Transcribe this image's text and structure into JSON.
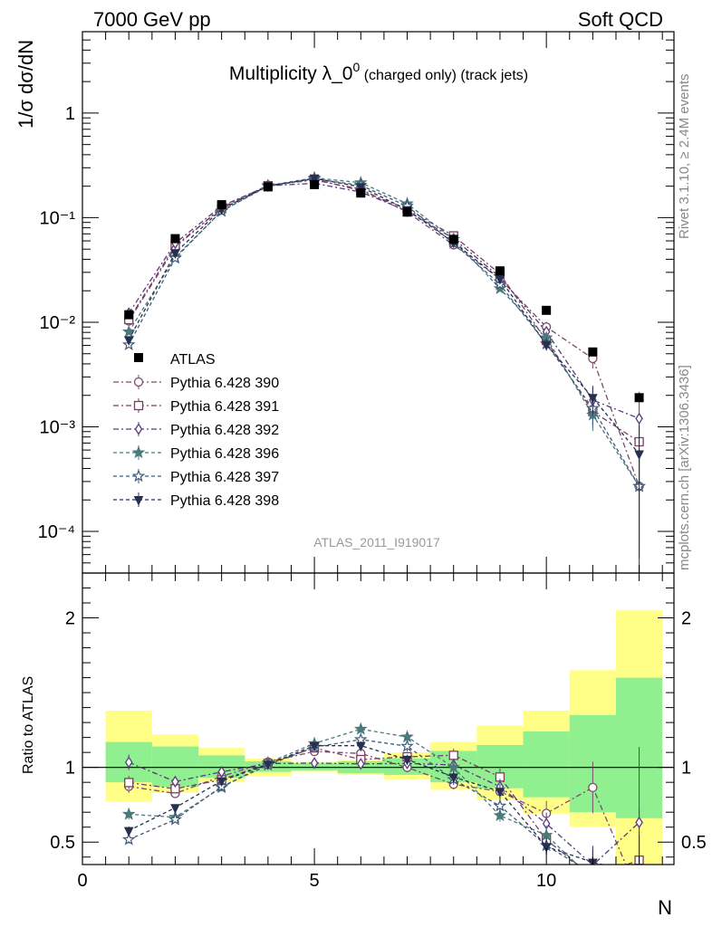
{
  "header": {
    "left": "7000 GeV pp",
    "right": "Soft QCD"
  },
  "side_labels": {
    "top": "Rivet 3.1.10, ≥ 2.4M events",
    "bottom": "mcplots.cern.ch [arXiv:1306.3436]"
  },
  "watermark": "ATLAS_2011_I919017",
  "title_main": "Multiplicity λ_0",
  "title_sup": "0",
  "title_small": " (charged only) (track jets)",
  "xlabel": "N",
  "ylabel_main": "1/σ dσ/dN",
  "ylabel_ratio": "Ratio to ATLAS",
  "colors": {
    "p390": "#7a4a6e",
    "p391": "#7a3e5f",
    "p392": "#5a3a7e",
    "p396": "#4a7a7a",
    "p397": "#3e5a7a",
    "p398": "#27304f",
    "band_inner": "#90f090",
    "band_outer": "#ffff88"
  },
  "chart_data": {
    "type": "line",
    "x": [
      1,
      2,
      3,
      4,
      5,
      6,
      7,
      8,
      9,
      10,
      11,
      12
    ],
    "xlim": [
      0,
      12.75
    ],
    "ylim": [
      4e-05,
      6
    ],
    "yscale": "log",
    "xticks": [
      0,
      5,
      10
    ],
    "yticks": [
      "1",
      "10⁻¹",
      "10⁻²",
      "10⁻³",
      "10⁻⁴"
    ],
    "ratio_ylim": [
      0.35,
      2.3
    ],
    "ratio_yticks": [
      "0.5",
      "1",
      "2"
    ],
    "legend_placement": "lower-left",
    "data": {
      "name": "ATLAS",
      "values": [
        0.0118,
        0.063,
        0.133,
        0.197,
        0.207,
        0.172,
        0.113,
        0.062,
        0.031,
        0.013,
        0.0052,
        0.0019
      ],
      "band_inner": [
        [
          0.9,
          1.17
        ],
        [
          0.87,
          1.14
        ],
        [
          0.93,
          1.08
        ],
        [
          0.97,
          1.04
        ],
        [
          0.98,
          1.03
        ],
        [
          0.96,
          1.04
        ],
        [
          0.95,
          1.06
        ],
        [
          0.9,
          1.11
        ],
        [
          0.86,
          1.15
        ],
        [
          0.8,
          1.24
        ],
        [
          0.7,
          1.35
        ],
        [
          0.66,
          1.6
        ]
      ],
      "band_outer": [
        [
          0.77,
          1.38
        ],
        [
          0.83,
          1.22
        ],
        [
          0.9,
          1.13
        ],
        [
          0.94,
          1.06
        ],
        [
          0.97,
          1.04
        ],
        [
          0.95,
          1.05
        ],
        [
          0.92,
          1.1
        ],
        [
          0.85,
          1.17
        ],
        [
          0.78,
          1.28
        ],
        [
          0.69,
          1.38
        ],
        [
          0.6,
          1.65
        ],
        [
          0.35,
          2.05
        ]
      ]
    },
    "series": [
      {
        "name": "Pythia 6.428 390",
        "marker": "circle-open",
        "values": [
          0.0103,
          0.052,
          0.125,
          0.204,
          0.229,
          0.188,
          0.113,
          0.055,
          0.026,
          0.009,
          0.0045,
          0.00027
        ],
        "err": [
          0.05,
          0.03,
          0.03,
          0.02,
          0.02,
          0.02,
          0.03,
          0.04,
          0.06,
          0.12,
          0.2,
          0.9
        ]
      },
      {
        "name": "Pythia 6.428 391",
        "marker": "square-open",
        "values": [
          0.0106,
          0.054,
          0.122,
          0.202,
          0.234,
          0.181,
          0.121,
          0.067,
          0.029,
          0.0067,
          0.0014,
          0.00072
        ],
        "err": [
          0.05,
          0.03,
          0.03,
          0.02,
          0.02,
          0.02,
          0.03,
          0.04,
          0.06,
          0.12,
          0.3,
          0.9
        ]
      },
      {
        "name": "Pythia 6.428 392",
        "marker": "diamond-open",
        "values": [
          0.0122,
          0.057,
          0.129,
          0.202,
          0.213,
          0.176,
          0.116,
          0.063,
          0.027,
          0.0081,
          0.0018,
          0.0012
        ],
        "err": [
          0.05,
          0.03,
          0.03,
          0.02,
          0.02,
          0.02,
          0.03,
          0.04,
          0.06,
          0.12,
          0.3,
          0.8
        ]
      },
      {
        "name": "Pythia 6.428 396",
        "marker": "star-filled",
        "values": [
          0.0081,
          0.042,
          0.115,
          0.203,
          0.24,
          0.216,
          0.136,
          0.062,
          0.021,
          0.0071,
          0.0013,
          0.00027
        ],
        "err": [
          0.05,
          0.03,
          0.03,
          0.02,
          0.02,
          0.02,
          0.03,
          0.04,
          0.06,
          0.12,
          0.3,
          0.9
        ]
      },
      {
        "name": "Pythia 6.428 397",
        "marker": "star-open",
        "values": [
          0.0061,
          0.041,
          0.116,
          0.2,
          0.235,
          0.204,
          0.129,
          0.057,
          0.023,
          0.0062,
          0.0015,
          0.00027
        ],
        "err": [
          0.05,
          0.03,
          0.03,
          0.02,
          0.02,
          0.02,
          0.03,
          0.04,
          0.06,
          0.12,
          0.3,
          0.9
        ]
      },
      {
        "name": "Pythia 6.428 398",
        "marker": "triangle-down-filled",
        "values": [
          0.0068,
          0.046,
          0.121,
          0.201,
          0.237,
          0.197,
          0.119,
          0.058,
          0.026,
          0.0061,
          0.0019,
          0.00055
        ],
        "err": [
          0.05,
          0.03,
          0.03,
          0.02,
          0.02,
          0.02,
          0.03,
          0.04,
          0.06,
          0.12,
          0.3,
          0.9
        ]
      }
    ]
  }
}
